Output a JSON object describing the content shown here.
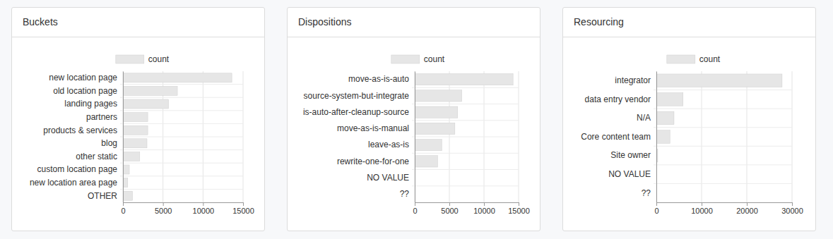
{
  "chart_data": [
    {
      "type": "bar",
      "title": "Buckets",
      "orientation": "horizontal",
      "grid": true,
      "legend": "top",
      "categories": [
        "new location page",
        "old location page",
        "landing pages",
        "partners",
        "products & services",
        "blog",
        "other static",
        "custom location page",
        "new location area page",
        "OTHER"
      ],
      "series": [
        {
          "name": "count",
          "color": "#e6e6e6",
          "values": [
            13600,
            6800,
            5700,
            3100,
            3100,
            3000,
            2100,
            800,
            600,
            1200
          ]
        }
      ],
      "xlim": [
        0,
        15000
      ],
      "xticks": [
        0,
        5000,
        10000,
        15000
      ]
    },
    {
      "type": "bar",
      "title": "Dispositions",
      "orientation": "horizontal",
      "grid": true,
      "legend": "top",
      "categories": [
        "move-as-is-auto",
        "source-system-but-integrate",
        "is-auto-after-cleanup-source",
        "move-as-is-manual",
        "leave-as-is",
        "rewrite-one-for-one",
        "NO VALUE",
        "??"
      ],
      "series": [
        {
          "name": "count",
          "color": "#e6e6e6",
          "values": [
            14200,
            6800,
            6200,
            5800,
            3900,
            3300,
            0,
            0
          ]
        }
      ],
      "xlim": [
        0,
        15000
      ],
      "xticks": [
        0,
        5000,
        10000,
        15000
      ]
    },
    {
      "type": "bar",
      "title": "Resourcing",
      "orientation": "horizontal",
      "grid": true,
      "legend": "top",
      "categories": [
        "integrator",
        "data entry vendor",
        "N/A",
        "Core content team",
        "Site owner",
        "NO VALUE",
        "??"
      ],
      "series": [
        {
          "name": "count",
          "color": "#e6e6e6",
          "values": [
            27800,
            5900,
            3900,
            3000,
            300,
            0,
            0
          ]
        }
      ],
      "xlim": [
        0,
        30000
      ],
      "xticks": [
        0,
        10000,
        20000,
        30000
      ]
    }
  ]
}
